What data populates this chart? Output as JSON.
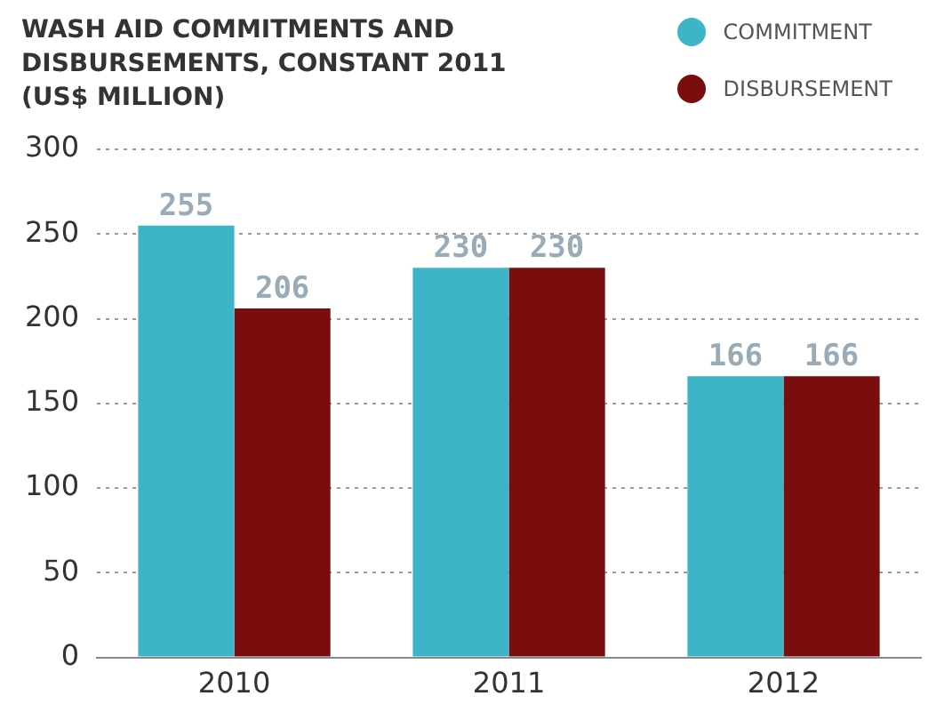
{
  "chart_data": {
    "type": "bar",
    "title": "WASH AID COMMITMENTS AND DISBURSEMENTS, CONSTANT 2011 (US$ MILLION)",
    "categories": [
      "2010",
      "2011",
      "2012"
    ],
    "series": [
      {
        "name": "COMMITMENT",
        "color": "#3db5c6",
        "values": [
          255,
          230,
          166
        ]
      },
      {
        "name": "DISBURSEMENT",
        "color": "#7a0d0d",
        "values": [
          206,
          230,
          166
        ]
      }
    ],
    "ylim": [
      0,
      300
    ],
    "yticks": [
      0,
      50,
      100,
      150,
      200,
      250,
      300
    ],
    "grid": "y",
    "legend": "top right",
    "data_labels": true
  }
}
